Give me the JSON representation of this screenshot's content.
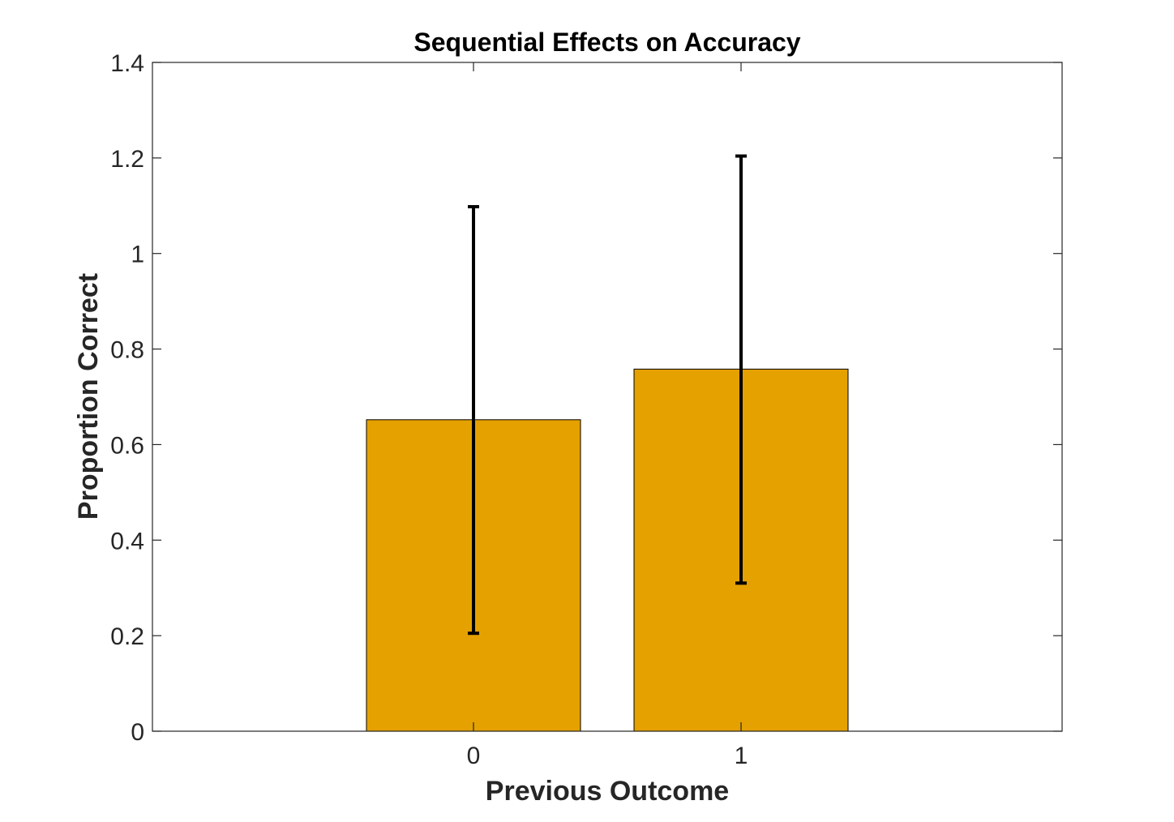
{
  "chart_data": {
    "type": "bar",
    "title": "Sequential Effects on Accuracy",
    "xlabel": "Previous Outcome",
    "ylabel": "Proportion Correct",
    "categories": [
      "0",
      "1"
    ],
    "values": [
      0.652,
      0.758
    ],
    "error_bars": {
      "lower": [
        0.205,
        0.31
      ],
      "upper": [
        1.098,
        1.204
      ]
    },
    "ylim": [
      0,
      1.4
    ],
    "yticks": [
      0,
      0.2,
      0.4,
      0.6,
      0.8,
      1,
      1.2,
      1.4
    ],
    "ytick_labels": [
      "0",
      "0.2",
      "0.4",
      "0.6",
      "0.8",
      "1",
      "1.2",
      "1.4"
    ],
    "xlim": [
      -1.2,
      2.2
    ],
    "grid": false,
    "colors": {
      "bar": "#e5a100",
      "bar_edge": "#000000",
      "error_bar": "#000000",
      "axis": "#262626"
    }
  }
}
